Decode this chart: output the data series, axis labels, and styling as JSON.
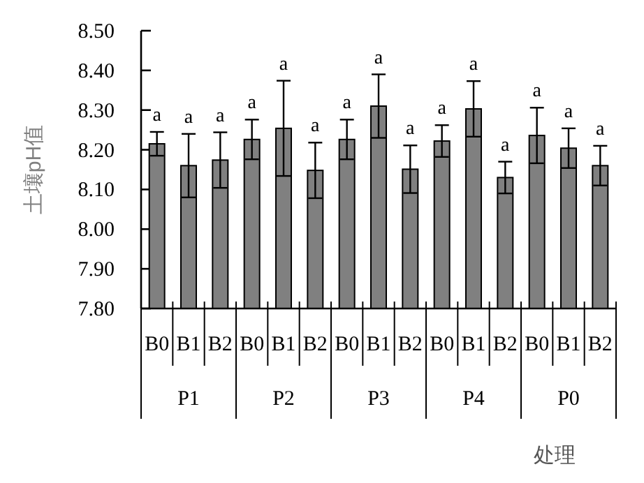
{
  "chart_data": {
    "type": "bar",
    "ylabel": "土壤pH值",
    "xlabel": "处理",
    "categories": [
      "B0",
      "B1",
      "B2",
      "B0",
      "B1",
      "B2",
      "B0",
      "B1",
      "B2",
      "B0",
      "B1",
      "B2",
      "B0",
      "B1",
      "B2"
    ],
    "values": [
      8.215,
      8.16,
      8.174,
      8.226,
      8.254,
      8.148,
      8.226,
      8.31,
      8.151,
      8.222,
      8.303,
      8.13,
      8.236,
      8.204,
      8.16
    ],
    "errors": [
      0.03,
      0.08,
      0.07,
      0.05,
      0.12,
      0.07,
      0.05,
      0.08,
      0.06,
      0.04,
      0.07,
      0.04,
      0.07,
      0.05,
      0.05
    ],
    "value_labels": [
      "a",
      "a",
      "a",
      "a",
      "a",
      "a",
      "a",
      "a",
      "a",
      "a",
      "a",
      "a",
      "a",
      "a",
      "a"
    ],
    "color": "#808080",
    "annotations": [
      "P1",
      "P2",
      "P3",
      "P4",
      "P0"
    ],
    "ylim": [
      7.8,
      8.5
    ],
    "yticks": [
      {
        "value": 7.8,
        "label": "7.80"
      },
      {
        "value": 7.9,
        "label": "7.90"
      },
      {
        "value": 8.0,
        "label": "8.00"
      },
      {
        "value": 8.1,
        "label": "8.10"
      },
      {
        "value": 8.2,
        "label": "8.20"
      },
      {
        "value": 8.3,
        "label": "8.30"
      },
      {
        "value": 8.4,
        "label": "8.40"
      },
      {
        "value": 8.5,
        "label": "8.50"
      }
    ],
    "grid": false
  }
}
